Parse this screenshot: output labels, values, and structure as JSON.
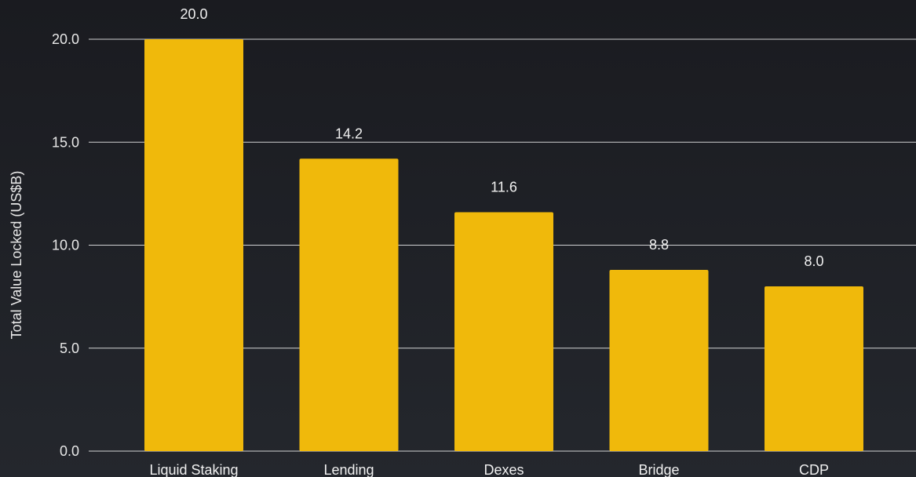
{
  "chart_data": {
    "type": "bar",
    "categories": [
      "Liquid Staking",
      "Lending",
      "Dexes",
      "Bridge",
      "CDP"
    ],
    "values": [
      20.0,
      14.2,
      11.6,
      8.8,
      8.0
    ],
    "data_labels": [
      "20.0",
      "14.2",
      "11.6",
      "8.8",
      "8.0"
    ],
    "title": "",
    "xlabel": "",
    "ylabel": "Total Value Locked (US$B)",
    "ylim": [
      0,
      20
    ],
    "yticks": [
      0,
      5,
      10,
      15,
      20
    ],
    "ytick_labels": [
      "0.0",
      "5.0",
      "10.0",
      "15.0",
      "20.0"
    ],
    "grid": true,
    "legend": "none",
    "bar_color": "#f0b90b",
    "background_color": "#1e2026"
  }
}
